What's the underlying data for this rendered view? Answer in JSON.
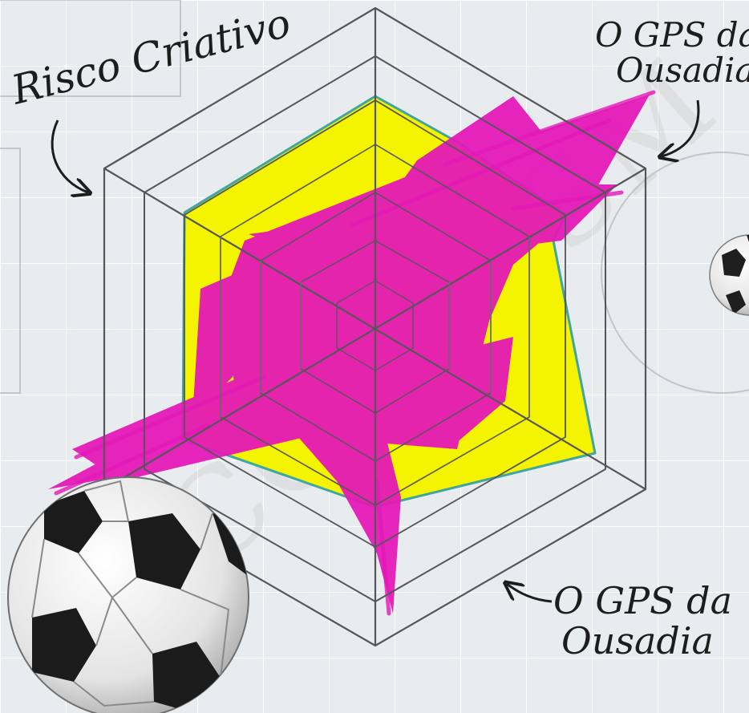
{
  "annotations": {
    "risk_label": "Risco Criativo",
    "gps_label_top": [
      "O GPS da",
      "Ousadia"
    ],
    "gps_label_bottom": [
      "O GPS da",
      "Ousadia"
    ]
  },
  "watermark": "SOCCERESM",
  "colors": {
    "background": "#e9ecee",
    "grid": "#ffffff",
    "hexagon_frame": "#8a8a8e",
    "yellow_area": "#f4f400",
    "yellow_outline": "#3fa6a0",
    "magenta_strokes": "#e418b8",
    "ink": "#1d1d1d"
  },
  "icons": [
    "soccer-ball-icon",
    "curved-arrow-icon"
  ]
}
